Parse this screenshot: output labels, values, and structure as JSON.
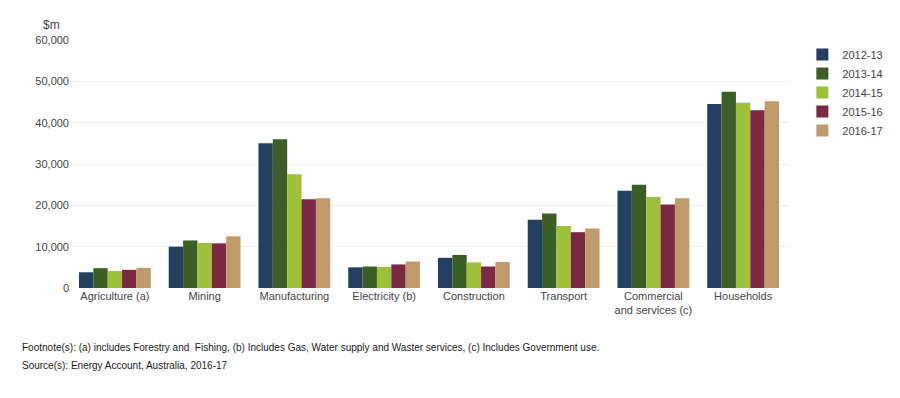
{
  "chart_data": {
    "type": "bar",
    "ylabel": "$m",
    "categories": [
      "Agriculture (a)",
      "Mining",
      "Manufacturing",
      "Electricity (b)",
      "Construction",
      "Transport",
      "Commercial\nand services (c)",
      "Households"
    ],
    "series": [
      {
        "name": "2012-13",
        "color": "#243F60",
        "values": [
          3800,
          10000,
          35000,
          5000,
          7300,
          16500,
          23500,
          44500
        ]
      },
      {
        "name": "2013-14",
        "color": "#3B5E26",
        "values": [
          4800,
          11500,
          36000,
          5200,
          8000,
          18000,
          25000,
          47500
        ]
      },
      {
        "name": "2014-15",
        "color": "#9DC23A",
        "values": [
          4100,
          10900,
          27500,
          5100,
          6200,
          15000,
          22000,
          44800
        ]
      },
      {
        "name": "2015-16",
        "color": "#7B2842",
        "values": [
          4400,
          10800,
          21500,
          5700,
          5200,
          13500,
          20200,
          43000
        ]
      },
      {
        "name": "2016-17",
        "color": "#C19A6B",
        "values": [
          4900,
          12500,
          21700,
          6400,
          6300,
          14400,
          21700,
          45200
        ]
      }
    ],
    "ylim": [
      0,
      60000
    ],
    "yticks": [
      0,
      {
        "value": 10000,
        "label": "10,000"
      },
      {
        "value": 20000,
        "label": "20,000"
      },
      {
        "value": 30000,
        "label": "30,000"
      },
      {
        "value": 40000,
        "label": "40,000"
      },
      {
        "value": 50000,
        "label": "50,000"
      },
      {
        "value": 60000,
        "label": "60,000"
      }
    ],
    "grid": true,
    "legend": "right",
    "annotations": [
      "Footnote(s): (a) includes Forestry and  Fishing, (b) Includes Gas, Water supply and Waster services, (c) Includes Government use.",
      "Source(s): Energy Account, Australia, 2016-17"
    ]
  }
}
